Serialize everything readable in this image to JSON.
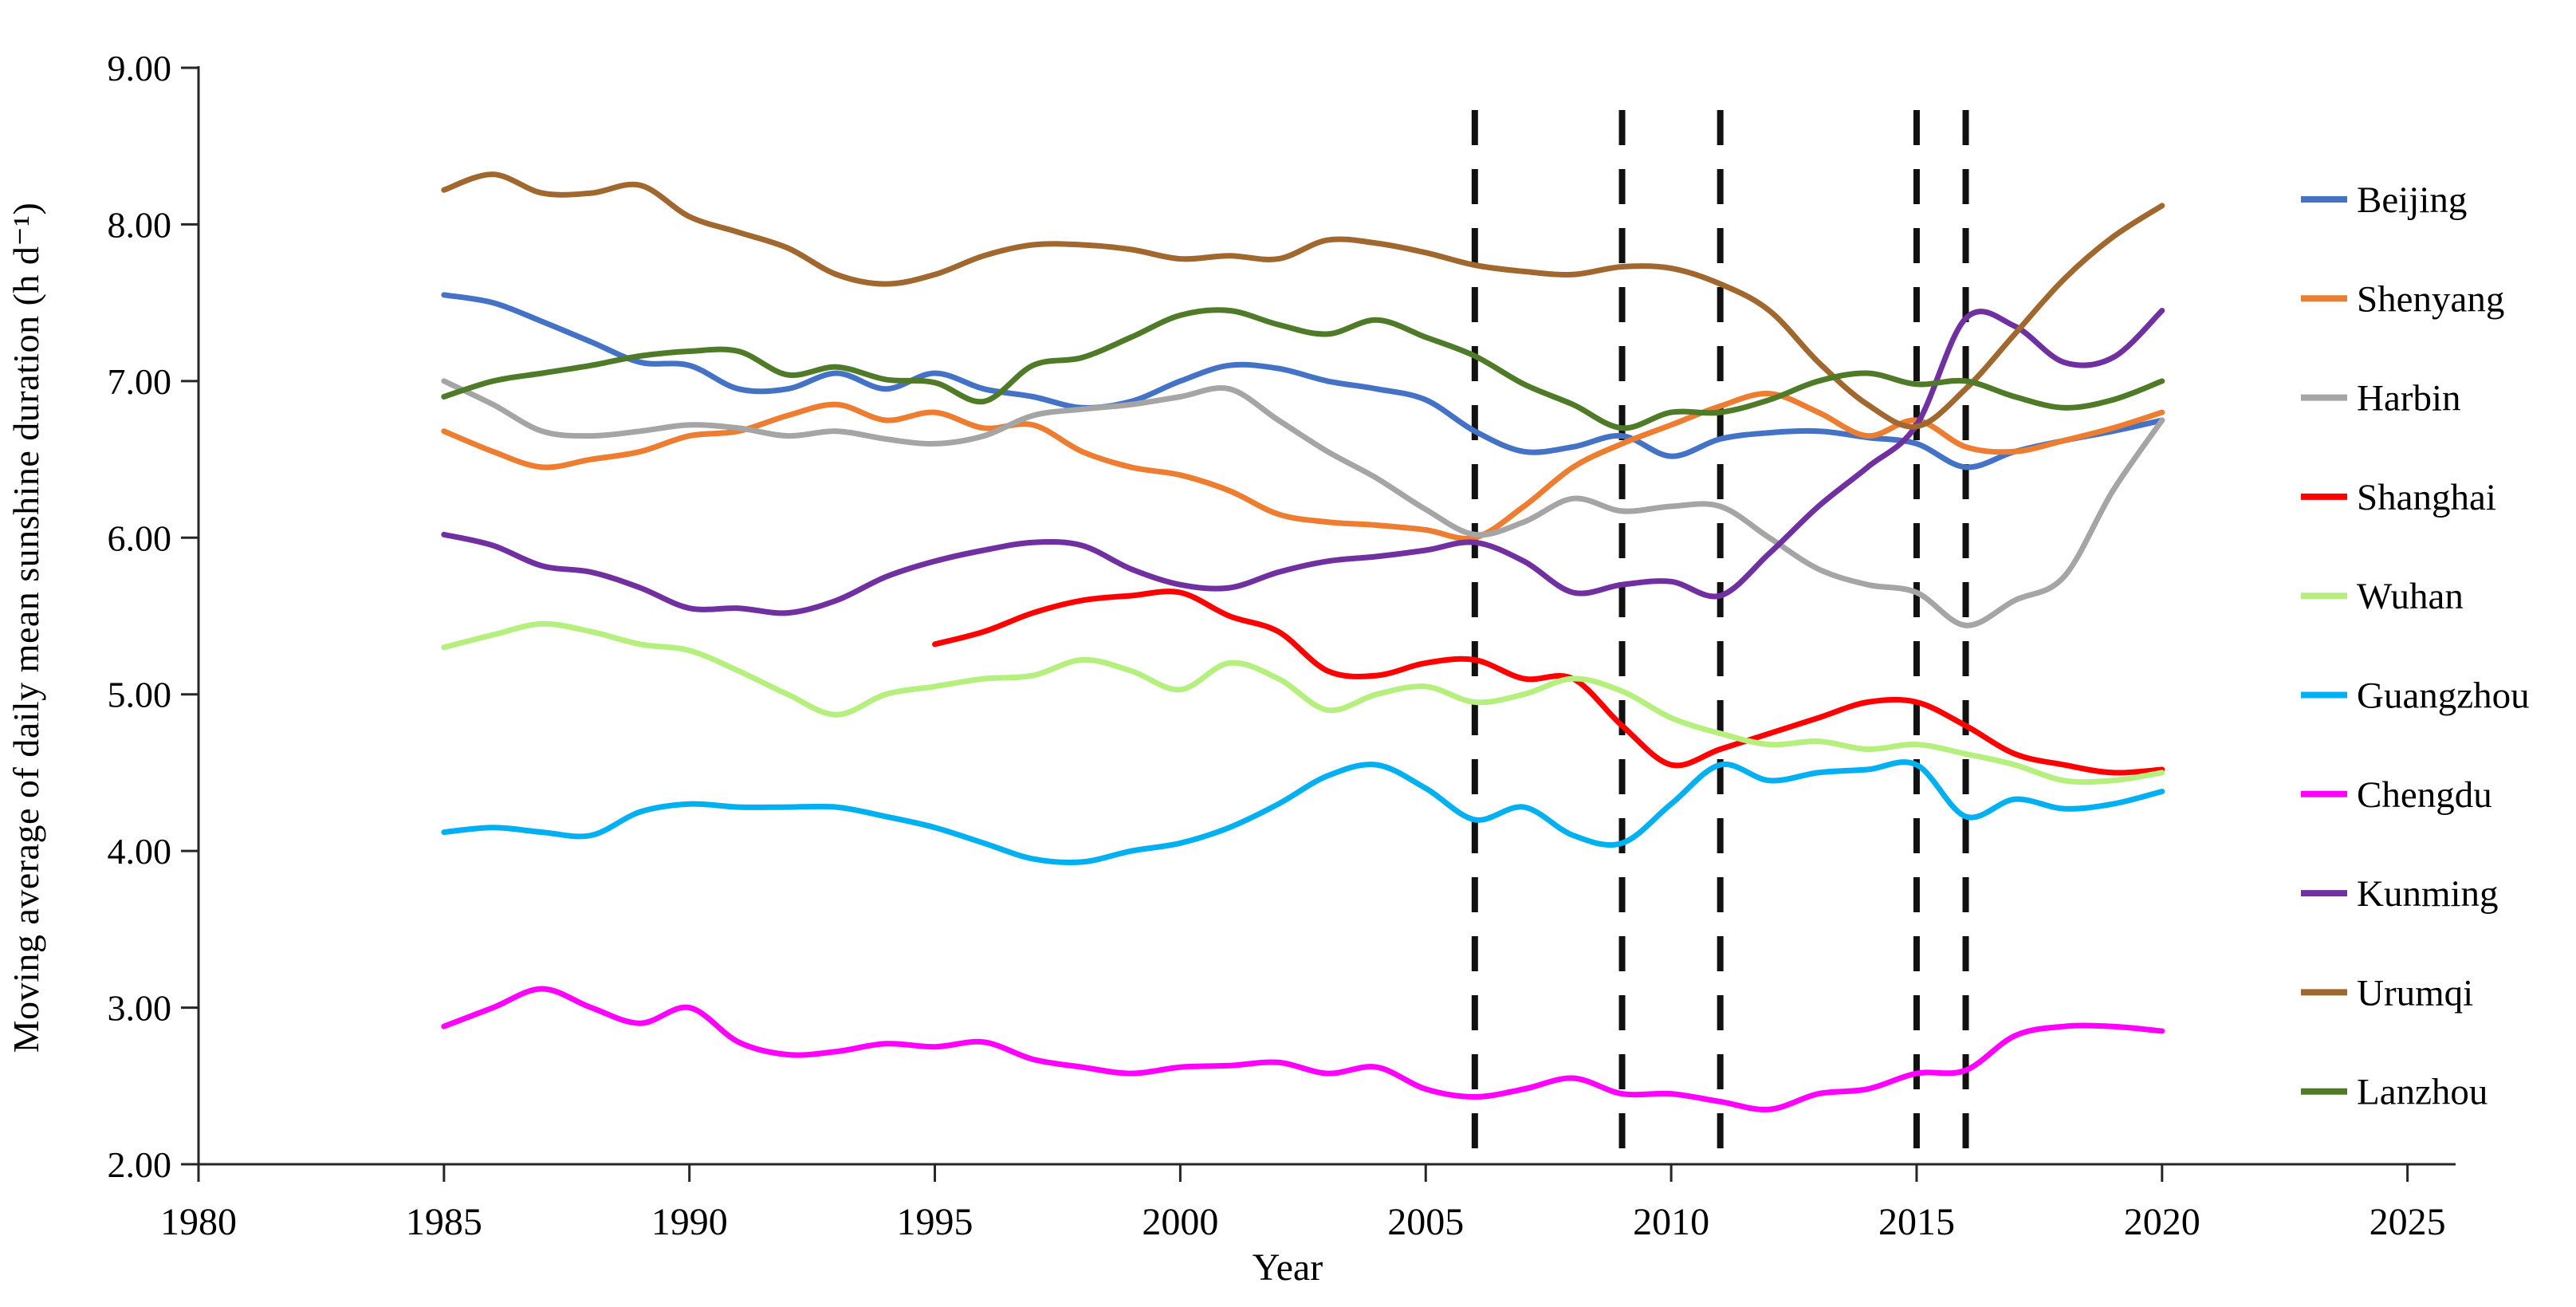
{
  "figure": {
    "background": "#ffffff",
    "text_color": "#000000",
    "axis_color": "#262626"
  },
  "chart_data": {
    "type": "line",
    "title": "",
    "xlabel": "Year",
    "ylabel": "Moving average of daily mean sunshine duration (h d⁻¹)",
    "xlim": [
      1980,
      2025
    ],
    "ylim": [
      2.0,
      9.0
    ],
    "grid": false,
    "legend_position": "right",
    "x_tick_labels": [
      "1980",
      "1985",
      "1990",
      "1995",
      "2000",
      "2005",
      "2010",
      "2015",
      "2020",
      "2025"
    ],
    "y_tick_labels": [
      "2.00",
      "3.00",
      "4.00",
      "5.00",
      "6.00",
      "7.00",
      "8.00",
      "9.00"
    ],
    "x": [
      1985,
      1986,
      1987,
      1988,
      1989,
      1990,
      1991,
      1992,
      1993,
      1994,
      1995,
      1996,
      1997,
      1998,
      1999,
      2000,
      2001,
      2002,
      2003,
      2004,
      2005,
      2006,
      2007,
      2008,
      2009,
      2010,
      2011,
      2012,
      2013,
      2014,
      2015,
      2016,
      2017,
      2018,
      2019,
      2020
    ],
    "event_lines": {
      "years": [
        2006,
        2009,
        2011,
        2015,
        2016
      ],
      "style": "dashed",
      "color": "#111111"
    },
    "series": [
      {
        "name": "Beijing",
        "color": "#4472C4",
        "values": [
          7.55,
          7.5,
          7.38,
          7.25,
          7.12,
          7.1,
          6.95,
          6.95,
          7.05,
          6.95,
          7.05,
          6.95,
          6.9,
          6.83,
          6.87,
          7.0,
          7.1,
          7.08,
          7.0,
          6.95,
          6.88,
          6.68,
          6.55,
          6.58,
          6.65,
          6.52,
          6.63,
          6.67,
          6.68,
          6.64,
          6.6,
          6.45,
          6.55,
          6.62,
          6.68,
          6.75
        ]
      },
      {
        "name": "Shenyang",
        "color": "#ED7D31",
        "values": [
          6.68,
          6.55,
          6.45,
          6.5,
          6.55,
          6.65,
          6.68,
          6.78,
          6.85,
          6.75,
          6.8,
          6.7,
          6.72,
          6.55,
          6.45,
          6.4,
          6.3,
          6.15,
          6.1,
          6.08,
          6.05,
          6.0,
          6.2,
          6.45,
          6.6,
          6.72,
          6.84,
          6.92,
          6.8,
          6.65,
          6.75,
          6.58,
          6.55,
          6.62,
          6.7,
          6.8
        ]
      },
      {
        "name": "Harbin",
        "color": "#A5A5A5",
        "values": [
          7.0,
          6.85,
          6.68,
          6.65,
          6.68,
          6.72,
          6.7,
          6.65,
          6.68,
          6.63,
          6.6,
          6.65,
          6.78,
          6.82,
          6.85,
          6.9,
          6.95,
          6.75,
          6.55,
          6.38,
          6.18,
          6.02,
          6.1,
          6.25,
          6.17,
          6.2,
          6.2,
          6.0,
          5.8,
          5.7,
          5.65,
          5.44,
          5.6,
          5.75,
          6.3,
          6.75
        ]
      },
      {
        "name": "Shanghai",
        "color": "#FF0000",
        "values": [
          null,
          null,
          null,
          null,
          null,
          null,
          null,
          null,
          null,
          null,
          5.32,
          5.4,
          5.52,
          5.6,
          5.63,
          5.65,
          5.5,
          5.4,
          5.15,
          5.12,
          5.2,
          5.22,
          5.1,
          5.1,
          4.8,
          4.55,
          4.65,
          4.75,
          4.85,
          4.95,
          4.95,
          4.8,
          4.62,
          4.55,
          4.5,
          4.52
        ]
      },
      {
        "name": "Wuhan",
        "color": "#B5F07E",
        "values": [
          5.3,
          5.38,
          5.45,
          5.4,
          5.32,
          5.28,
          5.15,
          5.0,
          4.87,
          5.0,
          5.05,
          5.1,
          5.12,
          5.22,
          5.15,
          5.03,
          5.2,
          5.1,
          4.9,
          5.0,
          5.05,
          4.95,
          5.0,
          5.1,
          5.02,
          4.85,
          4.75,
          4.68,
          4.7,
          4.65,
          4.68,
          4.62,
          4.55,
          4.45,
          4.45,
          4.5
        ]
      },
      {
        "name": "Guangzhou",
        "color": "#00B0F0",
        "values": [
          4.12,
          4.15,
          4.12,
          4.1,
          4.25,
          4.3,
          4.28,
          4.28,
          4.28,
          4.22,
          4.15,
          4.05,
          3.95,
          3.93,
          4.0,
          4.05,
          4.15,
          4.3,
          4.48,
          4.55,
          4.4,
          4.2,
          4.28,
          4.1,
          4.05,
          4.3,
          4.55,
          4.45,
          4.5,
          4.52,
          4.55,
          4.22,
          4.33,
          4.27,
          4.3,
          4.38
        ]
      },
      {
        "name": "Chengdu",
        "color": "#FF00FF",
        "values": [
          2.88,
          3.0,
          3.12,
          3.0,
          2.9,
          3.0,
          2.78,
          2.7,
          2.72,
          2.77,
          2.75,
          2.78,
          2.67,
          2.62,
          2.58,
          2.62,
          2.63,
          2.65,
          2.58,
          2.62,
          2.48,
          2.43,
          2.48,
          2.55,
          2.45,
          2.45,
          2.4,
          2.35,
          2.45,
          2.48,
          2.58,
          2.6,
          2.82,
          2.88,
          2.88,
          2.85
        ]
      },
      {
        "name": "Kunming",
        "color": "#7030A0",
        "values": [
          6.02,
          5.95,
          5.82,
          5.78,
          5.68,
          5.55,
          5.55,
          5.52,
          5.6,
          5.75,
          5.85,
          5.92,
          5.97,
          5.95,
          5.8,
          5.7,
          5.68,
          5.78,
          5.85,
          5.88,
          5.92,
          5.97,
          5.85,
          5.65,
          5.7,
          5.72,
          5.63,
          5.9,
          6.2,
          6.45,
          6.72,
          7.4,
          7.35,
          7.12,
          7.15,
          7.45
        ]
      },
      {
        "name": "Urumqi",
        "color": "#A0672E",
        "values": [
          8.22,
          8.32,
          8.2,
          8.2,
          8.25,
          8.05,
          7.95,
          7.85,
          7.68,
          7.62,
          7.68,
          7.8,
          7.87,
          7.87,
          7.84,
          7.78,
          7.8,
          7.78,
          7.9,
          7.88,
          7.82,
          7.74,
          7.7,
          7.68,
          7.73,
          7.72,
          7.62,
          7.45,
          7.12,
          6.85,
          6.71,
          6.95,
          7.3,
          7.65,
          7.92,
          8.12
        ]
      },
      {
        "name": "Lanzhou",
        "color": "#4F7A28",
        "values": [
          6.9,
          7.0,
          7.05,
          7.1,
          7.16,
          7.19,
          7.19,
          7.04,
          7.09,
          7.01,
          6.99,
          6.87,
          7.1,
          7.15,
          7.28,
          7.42,
          7.45,
          7.36,
          7.3,
          7.39,
          7.28,
          7.16,
          6.98,
          6.85,
          6.7,
          6.8,
          6.8,
          6.88,
          7.0,
          7.05,
          6.98,
          7.0,
          6.9,
          6.83,
          6.88,
          7.0
        ]
      }
    ]
  }
}
